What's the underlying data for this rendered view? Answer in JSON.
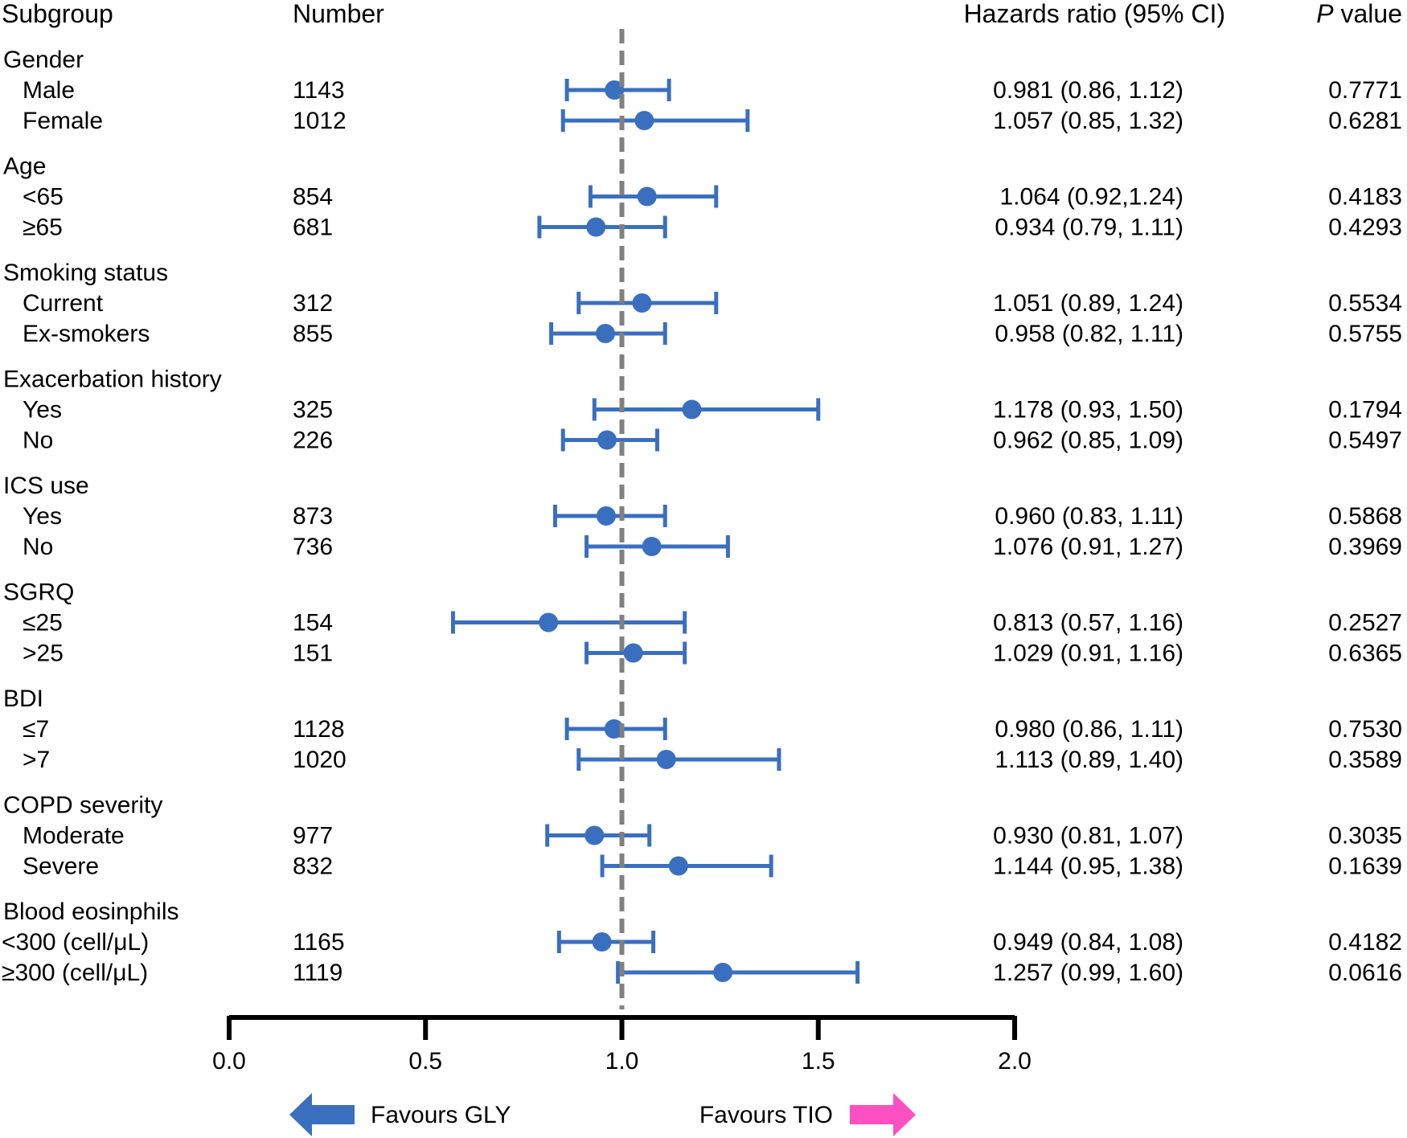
{
  "headers": {
    "subgroup": "Subgroup",
    "number": "Number",
    "hr": "Hazards ratio (95% CI)",
    "p_italic": "P",
    "p_rest": " value"
  },
  "legend": {
    "left": "Favours GLY",
    "right": "Favours TIO",
    "left_color": "#3a6fc0",
    "right_color": "#ff4fc0"
  },
  "colors": {
    "marker": "#3a6fc0",
    "reference_line": "#808080",
    "axis": "#000000"
  },
  "chart_data": {
    "type": "forest",
    "reference_value": 1.0,
    "xlim": [
      0.0,
      2.0
    ],
    "xticks": [
      "0.0",
      "0.5",
      "1.0",
      "1.5",
      "2.0"
    ],
    "groups": [
      {
        "name": "Gender",
        "rows": [
          {
            "label": "Male",
            "n": "1143",
            "hr": 0.981,
            "lo": 0.86,
            "hi": 1.12,
            "hr_text": "0.981 (0.86, 1.12)",
            "p": "0.7771"
          },
          {
            "label": "Female",
            "n": "1012",
            "hr": 1.057,
            "lo": 0.85,
            "hi": 1.32,
            "hr_text": "1.057 (0.85, 1.32)",
            "p": "0.6281"
          }
        ]
      },
      {
        "name": "Age",
        "rows": [
          {
            "label": "<65",
            "n": "854",
            "hr": 1.064,
            "lo": 0.92,
            "hi": 1.24,
            "hr_text": "1.064 (0.92,1.24)",
            "p": "0.4183"
          },
          {
            "label": "≥65",
            "n": "681",
            "hr": 0.934,
            "lo": 0.79,
            "hi": 1.11,
            "hr_text": "0.934 (0.79, 1.11)",
            "p": "0.4293"
          }
        ]
      },
      {
        "name": "Smoking status",
        "rows": [
          {
            "label": "Current",
            "n": "312",
            "hr": 1.051,
            "lo": 0.89,
            "hi": 1.24,
            "hr_text": "1.051 (0.89, 1.24)",
            "p": "0.5534"
          },
          {
            "label": "Ex-smokers",
            "n": "855",
            "hr": 0.958,
            "lo": 0.82,
            "hi": 1.11,
            "hr_text": "0.958 (0.82, 1.11)",
            "p": "0.5755"
          }
        ]
      },
      {
        "name": "Exacerbation history",
        "rows": [
          {
            "label": "Yes",
            "n": "325",
            "hr": 1.178,
            "lo": 0.93,
            "hi": 1.5,
            "hr_text": "1.178 (0.93, 1.50)",
            "p": "0.1794"
          },
          {
            "label": "No",
            "n": "226",
            "hr": 0.962,
            "lo": 0.85,
            "hi": 1.09,
            "hr_text": "0.962 (0.85, 1.09)",
            "p": "0.5497"
          }
        ]
      },
      {
        "name": "ICS use",
        "rows": [
          {
            "label": "Yes",
            "n": "873",
            "hr": 0.96,
            "lo": 0.83,
            "hi": 1.11,
            "hr_text": "0.960 (0.83, 1.11)",
            "p": "0.5868"
          },
          {
            "label": "No",
            "n": "736",
            "hr": 1.076,
            "lo": 0.91,
            "hi": 1.27,
            "hr_text": "1.076 (0.91, 1.27)",
            "p": "0.3969"
          }
        ]
      },
      {
        "name": "SGRQ",
        "rows": [
          {
            "label": "≤25",
            "n": "154",
            "hr": 0.813,
            "lo": 0.57,
            "hi": 1.16,
            "hr_text": "0.813 (0.57, 1.16)",
            "p": "0.2527"
          },
          {
            "label": ">25",
            "n": "151",
            "hr": 1.029,
            "lo": 0.91,
            "hi": 1.16,
            "hr_text": "1.029 (0.91, 1.16)",
            "p": "0.6365"
          }
        ]
      },
      {
        "name": "BDI",
        "rows": [
          {
            "label": "≤7",
            "n": "1128",
            "hr": 0.98,
            "lo": 0.86,
            "hi": 1.11,
            "hr_text": "0.980 (0.86, 1.11)",
            "p": "0.7530"
          },
          {
            "label": ">7",
            "n": "1020",
            "hr": 1.113,
            "lo": 0.89,
            "hi": 1.4,
            "hr_text": "1.113 (0.89, 1.40)",
            "p": "0.3589"
          }
        ]
      },
      {
        "name": "COPD severity",
        "rows": [
          {
            "label": "Moderate",
            "n": "977",
            "hr": 0.93,
            "lo": 0.81,
            "hi": 1.07,
            "hr_text": "0.930 (0.81, 1.07)",
            "p": "0.3035"
          },
          {
            "label": "Severe",
            "n": "832",
            "hr": 1.144,
            "lo": 0.95,
            "hi": 1.38,
            "hr_text": "1.144 (0.95, 1.38)",
            "p": "0.1639"
          }
        ]
      },
      {
        "name": "Blood eosinphils",
        "rows": [
          {
            "label": "<300 (cell/μL)",
            "n": "1165",
            "hr": 0.949,
            "lo": 0.84,
            "hi": 1.08,
            "hr_text": "0.949 (0.84, 1.08)",
            "p": "0.4182"
          },
          {
            "label": "≥300 (cell/μL)",
            "n": "1119",
            "hr": 1.257,
            "lo": 0.99,
            "hi": 1.6,
            "hr_text": "1.257 (0.99, 1.60)",
            "p": "0.0616"
          }
        ]
      }
    ]
  }
}
